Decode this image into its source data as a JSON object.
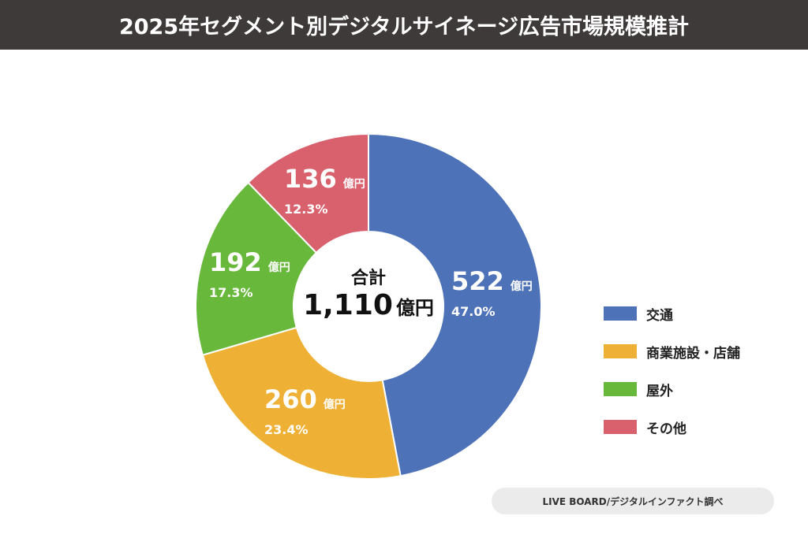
{
  "title": "2025年セグメント別デジタルサイネージ広告市場規模推計",
  "chart_data": {
    "type": "pie",
    "donut": true,
    "unit": "億円",
    "categories": [
      "交通",
      "商業施設・店舗",
      "屋外",
      "その他"
    ],
    "values": [
      522,
      260,
      192,
      136
    ],
    "percent_labels": [
      "47.0%",
      "23.4%",
      "17.3%",
      "12.3%"
    ],
    "value_labels": [
      "522",
      "260",
      "192",
      "136"
    ],
    "colors": [
      "#4e72b8",
      "#efb135",
      "#68b83c",
      "#d9616e"
    ],
    "center_label": "合計",
    "center_value": "1,110",
    "center_unit": "億円",
    "legend_placement": "right"
  },
  "source": "LIVE BOARD/デジタルインファクト調べ"
}
